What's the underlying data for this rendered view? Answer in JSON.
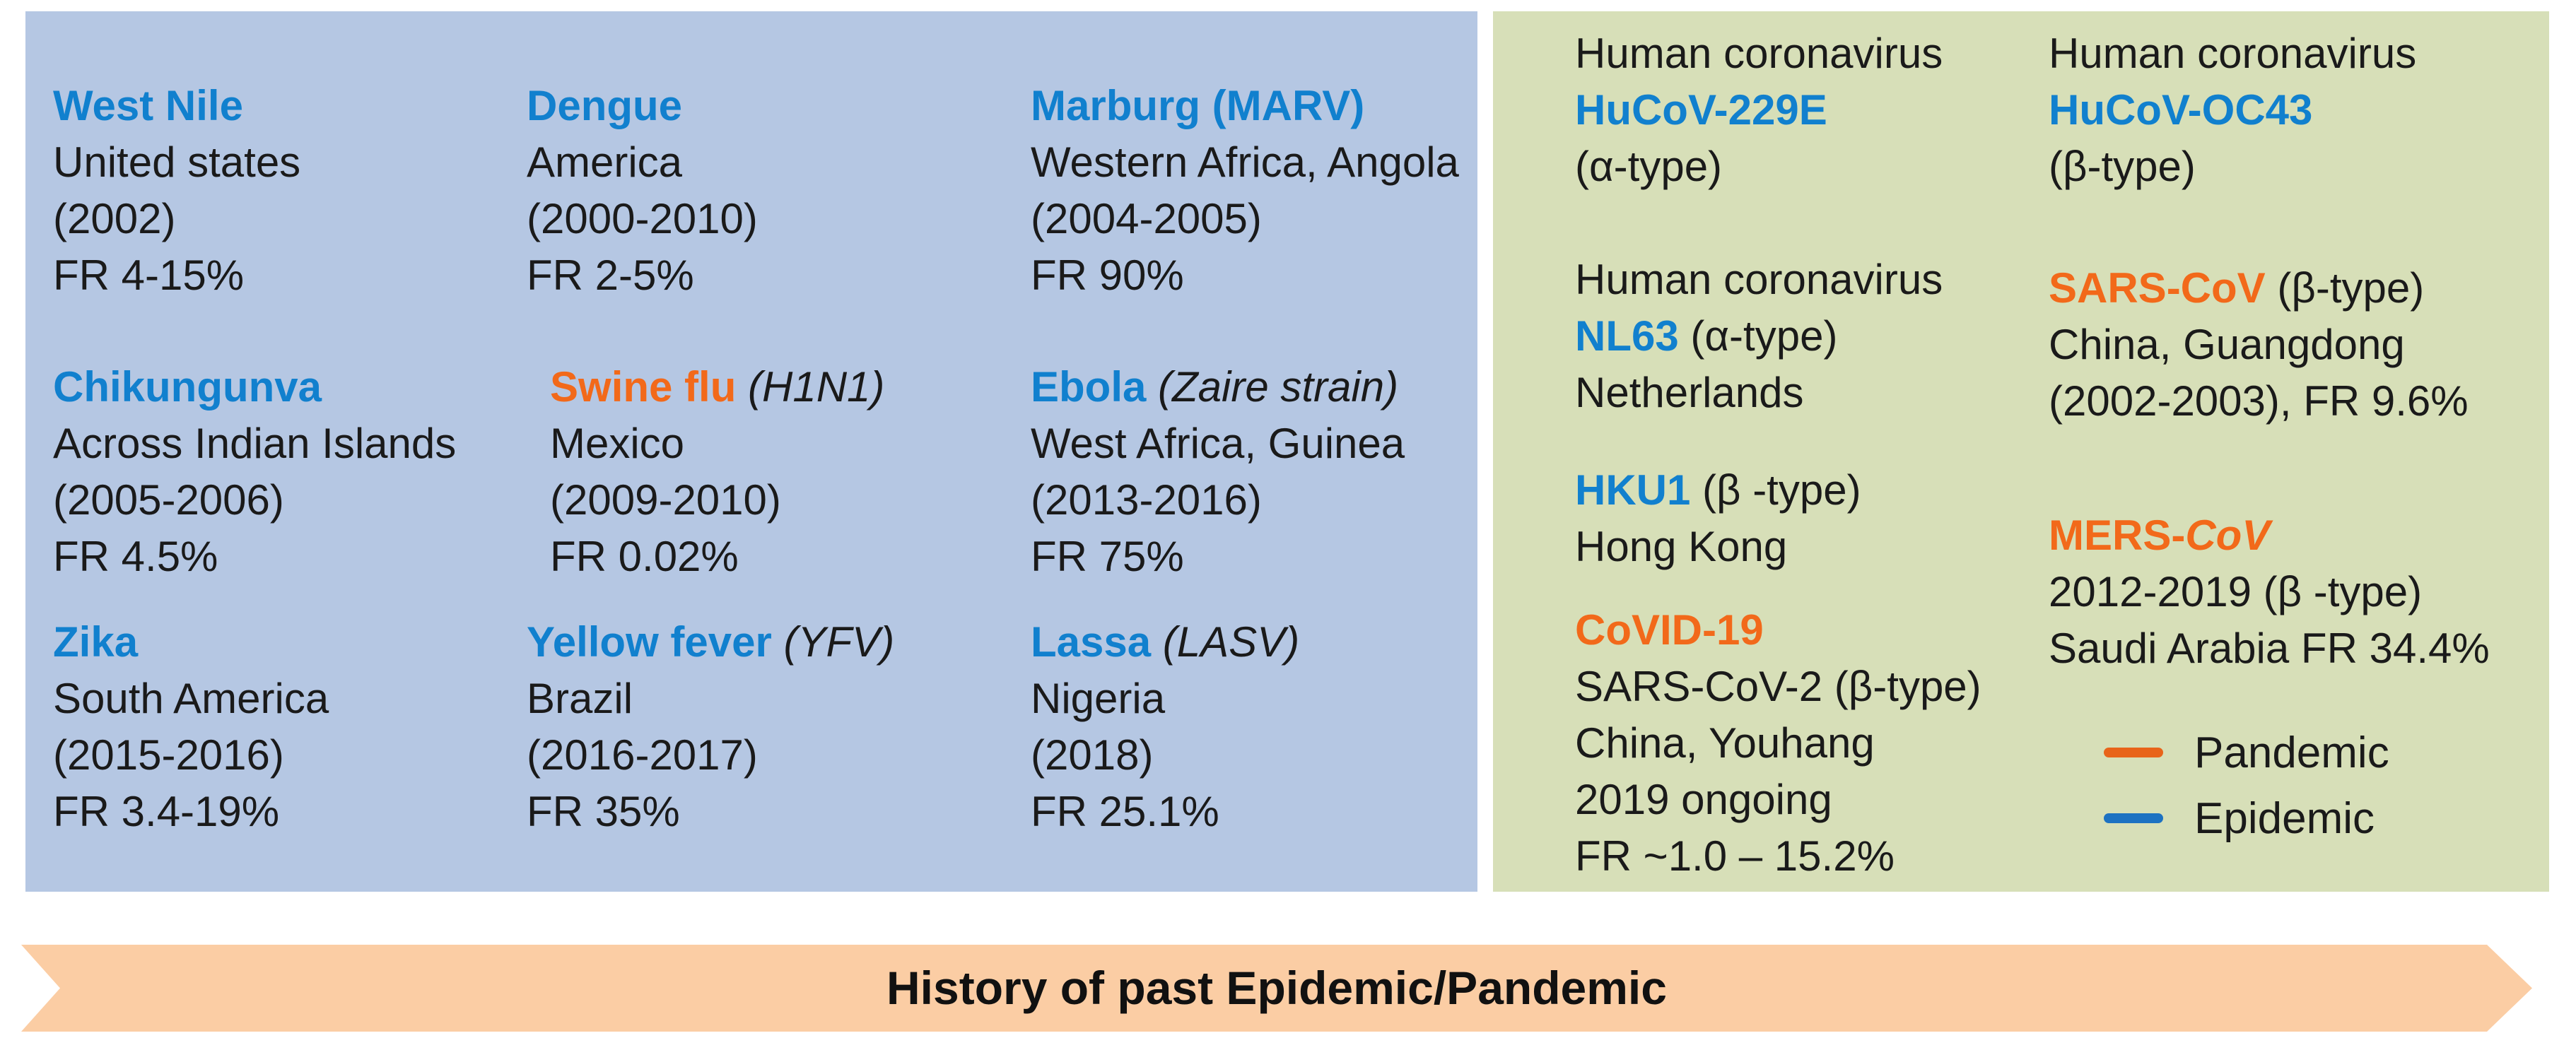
{
  "banner": {
    "label": "History of past Epidemic/Pandemic"
  },
  "colors": {
    "panel_blue": "#b5c7e3",
    "panel_green": "#d7dfb8",
    "banner_peach": "#fbcda4",
    "accent_blue": "#1180ce",
    "accent_orange": "#f2691a",
    "legend_orange": "#e8641a",
    "legend_blue": "#1d72c2",
    "ink": "#1a1a1a"
  },
  "legend": {
    "items": [
      {
        "label": "Pandemic",
        "color": "#e8641a"
      },
      {
        "label": "Epidemic",
        "color": "#1d72c2"
      }
    ]
  },
  "left_panel": {
    "groups": [
      {
        "title": "West Nile",
        "suffix": "",
        "lines": [
          "United states",
          "(2002)",
          "FR 4-15%"
        ]
      },
      {
        "title": "Dengue",
        "suffix": "",
        "lines": [
          "America",
          "(2000-2010)",
          "FR 2-5%"
        ]
      },
      {
        "title": "Marburg (MARV)",
        "suffix": "",
        "lines": [
          "Western Africa, Angola",
          "(2004-2005)",
          "FR 90%"
        ]
      },
      {
        "title": "Chikungunva",
        "suffix": "",
        "lines": [
          "Across Indian Islands",
          "(2005-2006)",
          "FR 4.5%"
        ]
      },
      {
        "title": "Swine flu",
        "suffix": " (H1N1)",
        "lines": [
          "Mexico",
          "(2009-2010)",
          "FR 0.02%"
        ]
      },
      {
        "title": "Ebola",
        "suffix": " (Zaire strain)",
        "lines": [
          "West Africa, Guinea",
          "(2013-2016)",
          "FR 75%"
        ]
      },
      {
        "title": "Zika",
        "suffix": "",
        "lines": [
          "South America",
          "(2015-2016)",
          "FR 3.4-19%"
        ]
      },
      {
        "title": "Yellow fever",
        "suffix": " (YFV)",
        "lines": [
          "Brazil",
          "(2016-2017)",
          "FR 35%"
        ]
      },
      {
        "title": "Lassa",
        "suffix": " (LASV)",
        "lines": [
          "Nigeria",
          "(2018)",
          "FR 25.1%"
        ]
      }
    ]
  },
  "right_panel": {
    "groups": [
      {
        "pre": "Human coronavirus",
        "title": "HuCoV-229E",
        "title2": "",
        "suffix": "",
        "lines": [
          "(α-type)"
        ]
      },
      {
        "pre": "Human coronavirus",
        "title": "HuCoV-OC43",
        "title2": "",
        "suffix": "",
        "lines": [
          "(β-type)"
        ]
      },
      {
        "pre": "Human coronavirus",
        "title": "NL63",
        "title2": "",
        "suffix": " (α-type)",
        "lines": [
          "Netherlands"
        ]
      },
      {
        "pre": "",
        "title": "SARS-CoV",
        "title2": "",
        "suffix": " (β-type)",
        "lines": [
          "China, Guangdong",
          "(2002-2003), FR 9.6%"
        ]
      },
      {
        "pre": "",
        "title": "HKU1",
        "title2": "",
        "suffix": " (β -type)",
        "lines": [
          "Hong Kong"
        ]
      },
      {
        "pre": "",
        "title": "MERS-",
        "title2": "CoV",
        "suffix": "",
        "lines": [
          "2012-2019 (β -type)",
          "Saudi Arabia FR 34.4%"
        ]
      },
      {
        "pre": "",
        "title": "CoVID-19",
        "title2": "",
        "suffix": "",
        "lines": [
          "SARS-CoV-2 (β-type)",
          "China, Youhang",
          "2019 ongoing",
          "FR ~1.0 – 15.2%"
        ]
      }
    ]
  }
}
